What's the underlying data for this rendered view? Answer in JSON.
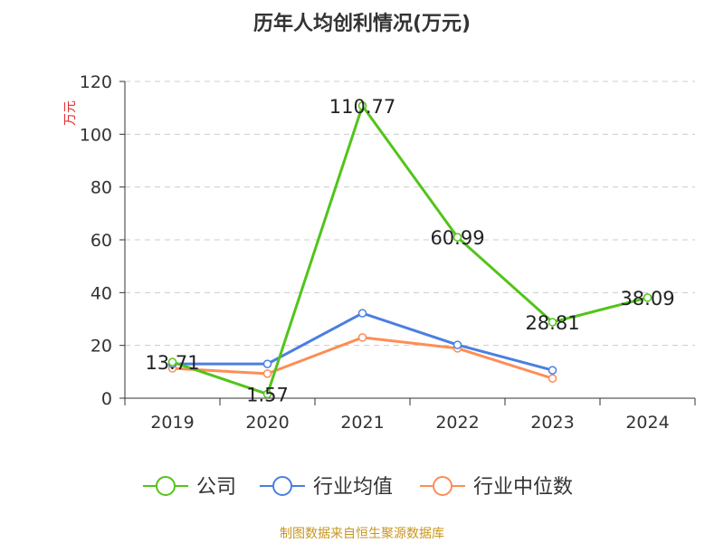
{
  "chart_data": {
    "type": "line",
    "title": "历年人均创利情况(万元)",
    "ylabel": "万元",
    "ylim": [
      0,
      120
    ],
    "yticks": [
      0,
      20,
      40,
      60,
      80,
      100,
      120
    ],
    "categories": [
      "2019",
      "2020",
      "2021",
      "2022",
      "2023",
      "2024"
    ],
    "grid": true,
    "legend_position": "bottom",
    "series": [
      {
        "name": "公司",
        "color": "#52c41a",
        "values": [
          13.71,
          1.57,
          110.77,
          60.99,
          28.81,
          38.09
        ],
        "labels": [
          "13.71",
          "1.57",
          "110.77",
          "60.99",
          "28.81",
          "38.09"
        ]
      },
      {
        "name": "行业均值",
        "color": "#4a7fe0",
        "values": [
          13.0,
          13.0,
          32.2,
          20.2,
          10.6,
          null
        ]
      },
      {
        "name": "行业中位数",
        "color": "#ff8c55",
        "values": [
          11.3,
          9.3,
          23.0,
          18.9,
          7.5,
          null
        ]
      }
    ]
  },
  "source": "制图数据来自恒生聚源数据库"
}
